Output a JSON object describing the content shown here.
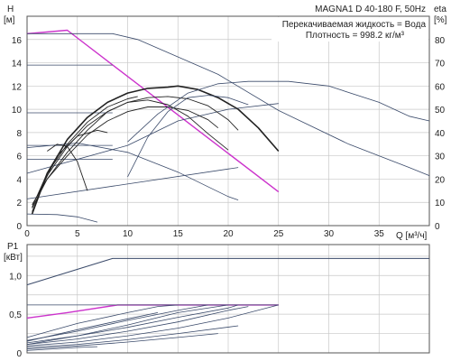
{
  "chart_data": [
    {
      "type": "line",
      "title": "MAGNA1 D 40-180 F, 50Hz",
      "annotations": [
        "Перекачиваемая жидкость = Вода",
        "Плотность = 998.2 кг/м³"
      ],
      "y_label_unit_top": "H",
      "y_label_unit_bottom": "[м]",
      "y2_label_top": "eta",
      "y2_label_bottom": "[%]",
      "x_label": "Q [м³/ч]",
      "xlim": [
        0,
        40
      ],
      "ylim": [
        0,
        18
      ],
      "y2lim": [
        0,
        90
      ],
      "x_ticks": [
        0,
        5,
        10,
        15,
        20,
        25,
        30,
        35
      ],
      "y_ticks": [
        0,
        2,
        4,
        6,
        8,
        10,
        12,
        14,
        16
      ],
      "y2_ticks": [
        0,
        10,
        20,
        30,
        40,
        50,
        60,
        70,
        80
      ],
      "grid": true,
      "colors": {
        "max_curve": "#cc33cc",
        "head_curves": "#222222",
        "eta_curves": "#3a4a6a",
        "grid": "#c8c8c8"
      },
      "series": [
        {
          "kind": "max",
          "points": [
            [
              0,
              16.5
            ],
            [
              4,
              16.8
            ],
            [
              25,
              2.9
            ]
          ]
        },
        {
          "kind": "constant-pressure",
          "points": [
            [
              0,
              16.5
            ],
            [
              8.5,
              16.5
            ],
            [
              11,
              16.0
            ],
            [
              19,
              13.0
            ],
            [
              25,
              9.9
            ],
            [
              32,
              7.0
            ],
            [
              38,
              5.0
            ],
            [
              40,
              4.3
            ]
          ]
        },
        {
          "kind": "constant-pressure",
          "points": [
            [
              0,
              13.8
            ],
            [
              8.5,
              13.8
            ]
          ]
        },
        {
          "kind": "constant-pressure",
          "points": [
            [
              0,
              9.7
            ],
            [
              8.5,
              9.7
            ]
          ]
        },
        {
          "kind": "constant-pressure",
          "points": [
            [
              0,
              6.9
            ],
            [
              8.5,
              6.9
            ]
          ]
        },
        {
          "kind": "constant-pressure",
          "points": [
            [
              0,
              5.7
            ],
            [
              8.5,
              5.7
            ]
          ]
        },
        {
          "kind": "constant-pressure",
          "points": [
            [
              0,
              1.0
            ],
            [
              3,
              0.95
            ],
            [
              5,
              0.75
            ],
            [
              7,
              0.3
            ]
          ]
        },
        {
          "kind": "proportional",
          "points": [
            [
              0,
              2.3
            ],
            [
              21,
              5.0
            ]
          ]
        },
        {
          "kind": "proportional",
          "points": [
            [
              0,
              4.5
            ],
            [
              10,
              6.9
            ],
            [
              15,
              9.0
            ],
            [
              20,
              10.0
            ],
            [
              25,
              10.5
            ]
          ]
        },
        {
          "kind": "proportional",
          "points": [
            [
              0,
              6.7
            ],
            [
              5,
              7.1
            ],
            [
              10,
              6.3
            ],
            [
              15,
              4.6
            ],
            [
              20,
              2.5
            ],
            [
              21,
              2.2
            ]
          ]
        },
        {
          "kind": "head",
          "points": [
            [
              0.5,
              1.0
            ],
            [
              2,
              4.5
            ],
            [
              4,
              7.4
            ],
            [
              6,
              9.3
            ],
            [
              8,
              10.6
            ],
            [
              10,
              11.4
            ],
            [
              12,
              11.8
            ],
            [
              14,
              11.9
            ],
            [
              15,
              12.0
            ],
            [
              17,
              11.7
            ],
            [
              19,
              11.0
            ],
            [
              21,
              10.0
            ],
            [
              23,
              8.4
            ],
            [
              25,
              6.4
            ]
          ]
        },
        {
          "kind": "head",
          "points": [
            [
              0.5,
              1.2
            ],
            [
              2,
              4.3
            ],
            [
              4,
              6.8
            ],
            [
              6,
              8.6
            ],
            [
              8,
              9.8
            ],
            [
              10,
              10.6
            ],
            [
              12,
              11.0
            ],
            [
              14,
              11.1
            ],
            [
              16,
              10.9
            ],
            [
              18,
              10.3
            ],
            [
              20,
              9.1
            ],
            [
              21,
              8.2
            ]
          ]
        },
        {
          "kind": "head",
          "points": [
            [
              0.5,
              1.5
            ],
            [
              2,
              4.0
            ],
            [
              4,
              6.0
            ],
            [
              6,
              7.8
            ],
            [
              8,
              9.0
            ],
            [
              10,
              9.8
            ],
            [
              12,
              10.2
            ],
            [
              14,
              10.2
            ],
            [
              16,
              9.9
            ],
            [
              18,
              9.1
            ],
            [
              19,
              8.4
            ]
          ]
        },
        {
          "kind": "head",
          "points": [
            [
              0.5,
              1.8
            ],
            [
              2,
              4.0
            ],
            [
              4,
              6.3
            ],
            [
              6,
              8.2
            ],
            [
              8,
              9.8
            ],
            [
              10,
              10.6
            ],
            [
              12,
              10.8
            ],
            [
              14,
              10.4
            ],
            [
              16,
              9.4
            ],
            [
              18,
              7.9
            ],
            [
              20,
              6.5
            ]
          ]
        },
        {
          "kind": "head",
          "points": [
            [
              0.5,
              1.6
            ],
            [
              2,
              4.5
            ],
            [
              4,
              7.0
            ],
            [
              6,
              8.9
            ],
            [
              8,
              10.2
            ],
            [
              10,
              10.9
            ],
            [
              11,
              11.1
            ]
          ]
        },
        {
          "kind": "head",
          "points": [
            [
              1,
              2.5
            ],
            [
              3,
              6.0
            ],
            [
              5,
              7.7
            ],
            [
              7,
              8.2
            ],
            [
              8,
              8.0
            ]
          ]
        },
        {
          "kind": "head",
          "points": [
            [
              2,
              6.4
            ],
            [
              3,
              7.0
            ],
            [
              4,
              6.8
            ],
            [
              5,
              5.5
            ],
            [
              6,
              3.0
            ]
          ]
        },
        {
          "kind": "eta",
          "points": [
            [
              10,
              21
            ],
            [
              12,
              38
            ],
            [
              14,
              49
            ],
            [
              16,
              55
            ],
            [
              18,
              56
            ],
            [
              20,
              55
            ],
            [
              22,
              52
            ]
          ]
        },
        {
          "kind": "eta",
          "points": [
            [
              10,
              36
            ],
            [
              13,
              48
            ],
            [
              16,
              57
            ],
            [
              19,
              61
            ],
            [
              22,
              62
            ],
            [
              26,
              62
            ],
            [
              30,
              60
            ],
            [
              35,
              53
            ],
            [
              38,
              47
            ],
            [
              40,
              45
            ]
          ]
        }
      ]
    },
    {
      "type": "line",
      "y_label_top": "P1",
      "y_label_bottom": "[кВт]",
      "xlim": [
        0,
        40
      ],
      "ylim": [
        0,
        1.4
      ],
      "y_ticks": [
        0,
        0.5,
        1.0
      ],
      "y_tick_labels": [
        "0",
        "0,5",
        "1,0"
      ],
      "grid": true,
      "series": [
        {
          "kind": "max",
          "points": [
            [
              0,
              0.88
            ],
            [
              8.5,
              1.22
            ],
            [
              40,
              1.22
            ]
          ]
        },
        {
          "kind": "max-pink",
          "points": [
            [
              0,
              0.45
            ],
            [
              4,
              0.52
            ],
            [
              9,
              0.62
            ],
            [
              25,
              0.62
            ]
          ]
        },
        {
          "kind": "power",
          "points": [
            [
              0,
              0.62
            ],
            [
              25,
              0.62
            ]
          ]
        },
        {
          "kind": "power",
          "points": [
            [
              0,
              0.2
            ],
            [
              5,
              0.38
            ],
            [
              10,
              0.52
            ],
            [
              13,
              0.6
            ],
            [
              15,
              0.62
            ]
          ]
        },
        {
          "kind": "power",
          "points": [
            [
              0,
              0.16
            ],
            [
              5,
              0.28
            ],
            [
              10,
              0.42
            ],
            [
              15,
              0.55
            ],
            [
              18,
              0.62
            ]
          ]
        },
        {
          "kind": "power",
          "points": [
            [
              0,
              0.13
            ],
            [
              5,
              0.22
            ],
            [
              10,
              0.33
            ],
            [
              15,
              0.46
            ],
            [
              20,
              0.58
            ],
            [
              21,
              0.62
            ]
          ]
        },
        {
          "kind": "power",
          "points": [
            [
              0,
              0.11
            ],
            [
              5,
              0.18
            ],
            [
              10,
              0.28
            ],
            [
              15,
              0.4
            ],
            [
              20,
              0.55
            ],
            [
              22,
              0.6
            ]
          ]
        },
        {
          "kind": "power",
          "points": [
            [
              0,
              0.09
            ],
            [
              5,
              0.14
            ],
            [
              10,
              0.22
            ],
            [
              15,
              0.32
            ],
            [
              20,
              0.45
            ],
            [
              25,
              0.62
            ]
          ]
        },
        {
          "kind": "power",
          "points": [
            [
              0,
              0.07
            ],
            [
              5,
              0.11
            ],
            [
              10,
              0.17
            ],
            [
              15,
              0.25
            ],
            [
              21,
              0.35
            ]
          ]
        },
        {
          "kind": "power",
          "points": [
            [
              0,
              0.05
            ],
            [
              5,
              0.09
            ],
            [
              10,
              0.14
            ],
            [
              15,
              0.2
            ],
            [
              19,
              0.25
            ]
          ]
        },
        {
          "kind": "power",
          "points": [
            [
              0,
              0.03
            ],
            [
              5,
              0.07
            ],
            [
              7,
              0.08
            ]
          ]
        },
        {
          "kind": "power",
          "points": [
            [
              0,
              0.11
            ],
            [
              5,
              0.22
            ],
            [
              10,
              0.36
            ],
            [
              15,
              0.52
            ],
            [
              20,
              0.62
            ]
          ]
        },
        {
          "kind": "power",
          "points": [
            [
              0,
              0.15
            ],
            [
              5,
              0.3
            ],
            [
              10,
              0.44
            ],
            [
              13,
              0.52
            ]
          ]
        }
      ]
    }
  ]
}
